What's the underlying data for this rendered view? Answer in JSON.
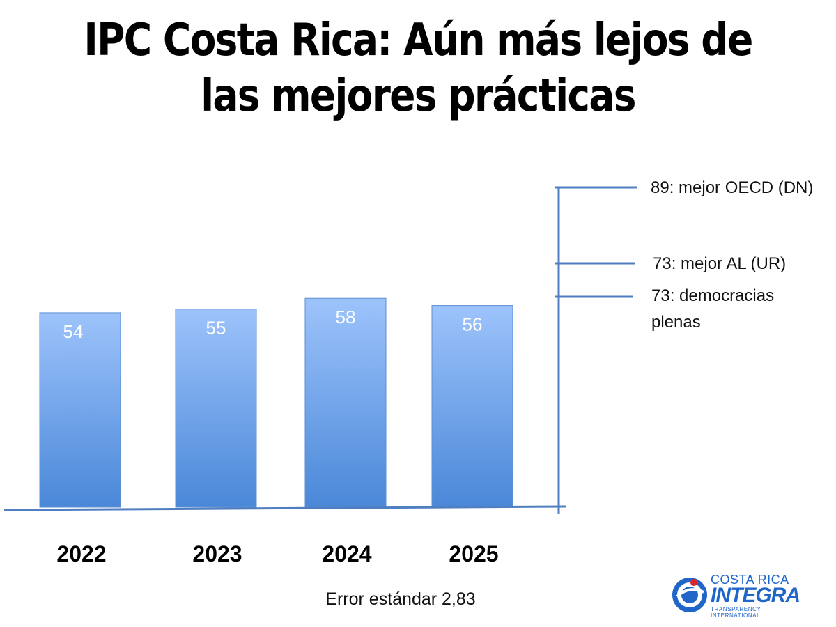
{
  "title": "IPC Costa Rica: Aún más lejos de las mejores prácticas",
  "chart_data": {
    "type": "bar",
    "categories": [
      "2022",
      "2023",
      "2024",
      "2025"
    ],
    "values": [
      54,
      55,
      58,
      56
    ],
    "ylim": [
      0,
      89
    ],
    "grid": false,
    "reference_lines": [
      {
        "value": 89,
        "label": "89: mejor OECD (DN)"
      },
      {
        "value": 73,
        "label": "73: mejor AL (UR)"
      },
      {
        "value": 73,
        "label": "73: democracias plenas"
      }
    ],
    "bar_color_top": "#9dc3fb",
    "bar_color_bottom": "#4a88d8",
    "axis_color": "#4f7fc0"
  },
  "footnote": "Error estándar 2,83",
  "logo": {
    "icon": "globe-person-icon",
    "line1": "COSTA RICA",
    "line2": "INTEGRA",
    "line3": "TRANSPARENCY INTERNATIONAL"
  }
}
